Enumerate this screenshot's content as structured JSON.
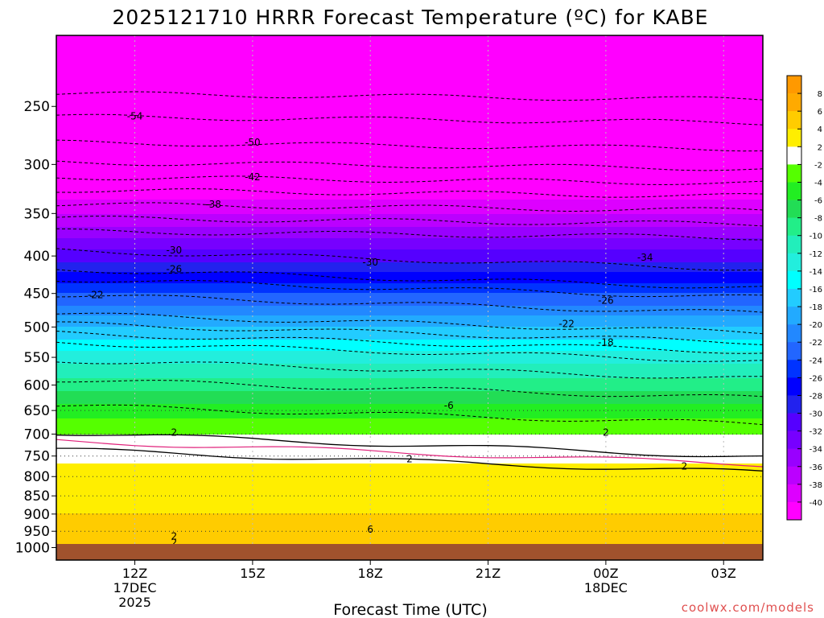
{
  "chart_data": {
    "type": "heatmap",
    "title": "2025121710 HRRR Forecast Temperature (ºC) for KABE",
    "xlabel": "Forecast Time (UTC)",
    "ylabel": "",
    "credit": "coolwx.com/models",
    "x_ticks": [
      {
        "hour": 12,
        "lines": [
          "12Z",
          "17DEC",
          "2025"
        ]
      },
      {
        "hour": 15,
        "lines": [
          "15Z"
        ]
      },
      {
        "hour": 18,
        "lines": [
          "18Z"
        ]
      },
      {
        "hour": 21,
        "lines": [
          "21Z"
        ]
      },
      {
        "hour": 24,
        "lines": [
          "00Z",
          "18DEC"
        ]
      },
      {
        "hour": 27,
        "lines": [
          "03Z"
        ]
      }
    ],
    "xlim_hours": [
      10,
      28
    ],
    "y_ticks": [
      250,
      300,
      350,
      400,
      450,
      500,
      550,
      600,
      650,
      700,
      750,
      800,
      850,
      900,
      950,
      1000
    ],
    "ylim_hpa": [
      200,
      1040
    ],
    "y_scale": "log",
    "colorbar": {
      "labels": [
        "8",
        "6",
        "4",
        "2",
        "-2",
        "-4",
        "-6",
        "-8",
        "-10",
        "-12",
        "-14",
        "-16",
        "-18",
        "-20",
        "-22",
        "-24",
        "-26",
        "-28",
        "-30",
        "-32",
        "-34",
        "-36",
        "-38",
        "-40"
      ],
      "colors": [
        "#ff9900",
        "#ffaa00",
        "#ffcc00",
        "#ffee00",
        "#ffffff",
        "#55ff00",
        "#22ee22",
        "#22dd55",
        "#22ee88",
        "#22eebb",
        "#22eedd",
        "#00ffff",
        "#22ccff",
        "#22aaff",
        "#2288ff",
        "#2266ff",
        "#0033ff",
        "#0000ff",
        "#2222ee",
        "#5500ff",
        "#7700ff",
        "#9900ff",
        "#bb00ff",
        "#dd00ff",
        "#ff00ff"
      ]
    },
    "temperature_profile": [
      {
        "p": 1000,
        "t": 5
      },
      {
        "p": 950,
        "t": 5
      },
      {
        "p": 900,
        "t": 4
      },
      {
        "p": 850,
        "t": 3.5
      },
      {
        "p": 800,
        "t": 3
      },
      {
        "p": 750,
        "t": 1.5
      },
      {
        "p": 700,
        "t": -2
      },
      {
        "p": 650,
        "t": -5
      },
      {
        "p": 600,
        "t": -9
      },
      {
        "p": 550,
        "t": -13
      },
      {
        "p": 500,
        "t": -18
      },
      {
        "p": 450,
        "t": -24
      },
      {
        "p": 400,
        "t": -31
      },
      {
        "p": 350,
        "t": -38
      },
      {
        "p": 300,
        "t": -45
      },
      {
        "p": 250,
        "t": -53
      },
      {
        "p": 200,
        "t": -60
      }
    ],
    "contour_labels": [
      {
        "text": "-54",
        "hour": 12,
        "p": 258
      },
      {
        "text": "-50",
        "hour": 15,
        "p": 280
      },
      {
        "text": "-42",
        "hour": 15,
        "p": 312
      },
      {
        "text": "-38",
        "hour": 14,
        "p": 340
      },
      {
        "text": "-30",
        "hour": 13,
        "p": 393
      },
      {
        "text": "-26",
        "hour": 13,
        "p": 417
      },
      {
        "text": "-22",
        "hour": 11,
        "p": 452
      },
      {
        "text": "-30",
        "hour": 18,
        "p": 408
      },
      {
        "text": "-34",
        "hour": 25,
        "p": 402
      },
      {
        "text": "-26",
        "hour": 24,
        "p": 460
      },
      {
        "text": "-22",
        "hour": 23,
        "p": 495
      },
      {
        "text": "-18",
        "hour": 24,
        "p": 525
      },
      {
        "text": "-6",
        "hour": 20,
        "p": 640
      },
      {
        "text": "2",
        "hour": 13,
        "p": 697
      },
      {
        "text": "2",
        "hour": 24,
        "p": 697
      },
      {
        "text": "2",
        "hour": 19,
        "p": 757
      },
      {
        "text": "2",
        "hour": 26,
        "p": 775
      },
      {
        "text": "6",
        "hour": 18,
        "p": 945
      },
      {
        "text": "2",
        "hour": 13,
        "p": 965
      },
      {
        "text": "2",
        "hour": 13,
        "p": 985
      }
    ]
  }
}
